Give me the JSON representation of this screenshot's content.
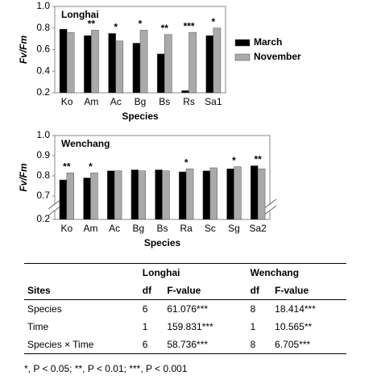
{
  "chart_data": [
    {
      "type": "bar",
      "title": "Longhai",
      "x_label": "Species",
      "y_label": "Fv/Fm",
      "categories": [
        "Ko",
        "Am",
        "Ac",
        "Bg",
        "Bs",
        "Rs",
        "Sa1"
      ],
      "series": [
        {
          "name": "March",
          "color": "#000000",
          "values": [
            0.79,
            0.73,
            0.75,
            0.66,
            0.56,
            0.22,
            0.73
          ]
        },
        {
          "name": "November",
          "color": "#aaaaaa",
          "values": [
            0.76,
            0.78,
            0.68,
            0.78,
            0.74,
            0.76,
            0.8
          ]
        }
      ],
      "annotations": [
        null,
        "**",
        "*",
        "*",
        "**",
        "***",
        "*"
      ],
      "ylim": [
        0.2,
        1.0
      ],
      "yticks": [
        0.2,
        0.4,
        0.6,
        0.8,
        {
          "value": 1.0,
          "label": "1.0"
        }
      ],
      "legend": "right",
      "axis_break": false
    },
    {
      "type": "bar",
      "title": "Wenchang",
      "x_label": "Species",
      "y_label": "Fv/Fm",
      "categories": [
        "Ko",
        "Am",
        "Ac",
        "Bg",
        "Bs",
        "Ra",
        "Sc",
        "Sg",
        "Sa2"
      ],
      "series": [
        {
          "name": "March",
          "color": "#000000",
          "values": [
            0.78,
            0.79,
            0.825,
            0.83,
            0.83,
            0.82,
            0.825,
            0.835,
            0.85
          ]
        },
        {
          "name": "November",
          "color": "#aaaaaa",
          "values": [
            0.815,
            0.815,
            0.825,
            0.825,
            0.825,
            0.835,
            0.84,
            0.845,
            0.835
          ]
        }
      ],
      "annotations": [
        "**",
        "*",
        null,
        null,
        null,
        "*",
        null,
        "*",
        "**"
      ],
      "ylim": [
        0.2,
        1.0
      ],
      "yticks": [
        0.2,
        0.7,
        0.8,
        0.9,
        {
          "value": 1.0,
          "label": "1.0"
        }
      ],
      "axis_break": true
    }
  ],
  "table": {
    "header_groups": [
      "Longhai",
      "Wenchang"
    ],
    "columns": [
      "Sites",
      "df",
      "F-value",
      "df",
      "F-value"
    ],
    "rows": [
      [
        "Species",
        "6",
        "61.076***",
        "8",
        "18.414***"
      ],
      [
        "Time",
        "1",
        "159.831***",
        "1",
        "10.565**"
      ],
      [
        "Species × Time",
        "6",
        "58.736***",
        "8",
        "6.705***"
      ]
    ],
    "footnote": "*, P < 0.05; **, P < 0.01; ***, P < 0.001"
  }
}
